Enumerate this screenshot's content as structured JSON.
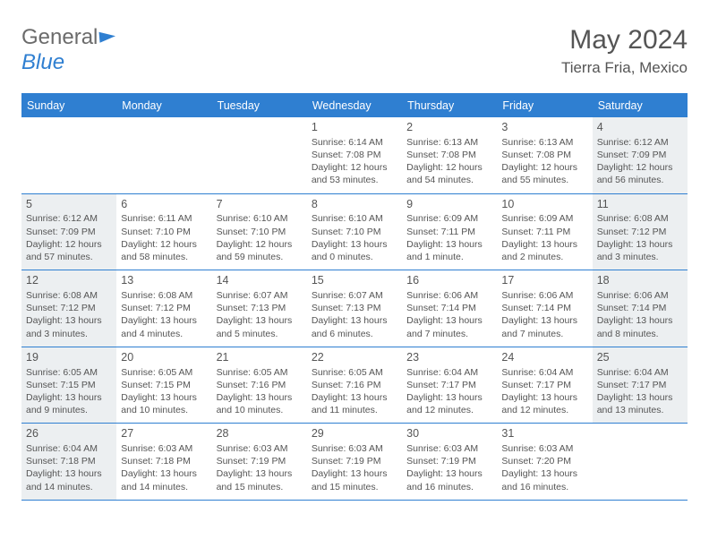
{
  "logo": {
    "text1": "General",
    "text2": "Blue"
  },
  "title": "May 2024",
  "location": "Tierra Fria, Mexico",
  "colors": {
    "brand": "#2f7fd1",
    "text": "#555555",
    "shaded_bg": "#eceff1",
    "background": "#ffffff"
  },
  "weekdays": [
    "Sunday",
    "Monday",
    "Tuesday",
    "Wednesday",
    "Thursday",
    "Friday",
    "Saturday"
  ],
  "weeks": [
    [
      null,
      null,
      null,
      {
        "n": "1",
        "sr": "Sunrise: 6:14 AM",
        "ss": "Sunset: 7:08 PM",
        "d1": "Daylight: 12 hours",
        "d2": "and 53 minutes."
      },
      {
        "n": "2",
        "sr": "Sunrise: 6:13 AM",
        "ss": "Sunset: 7:08 PM",
        "d1": "Daylight: 12 hours",
        "d2": "and 54 minutes."
      },
      {
        "n": "3",
        "sr": "Sunrise: 6:13 AM",
        "ss": "Sunset: 7:08 PM",
        "d1": "Daylight: 12 hours",
        "d2": "and 55 minutes."
      },
      {
        "n": "4",
        "sr": "Sunrise: 6:12 AM",
        "ss": "Sunset: 7:09 PM",
        "d1": "Daylight: 12 hours",
        "d2": "and 56 minutes.",
        "shaded": true
      }
    ],
    [
      {
        "n": "5",
        "sr": "Sunrise: 6:12 AM",
        "ss": "Sunset: 7:09 PM",
        "d1": "Daylight: 12 hours",
        "d2": "and 57 minutes.",
        "shaded": true
      },
      {
        "n": "6",
        "sr": "Sunrise: 6:11 AM",
        "ss": "Sunset: 7:10 PM",
        "d1": "Daylight: 12 hours",
        "d2": "and 58 minutes."
      },
      {
        "n": "7",
        "sr": "Sunrise: 6:10 AM",
        "ss": "Sunset: 7:10 PM",
        "d1": "Daylight: 12 hours",
        "d2": "and 59 minutes."
      },
      {
        "n": "8",
        "sr": "Sunrise: 6:10 AM",
        "ss": "Sunset: 7:10 PM",
        "d1": "Daylight: 13 hours",
        "d2": "and 0 minutes."
      },
      {
        "n": "9",
        "sr": "Sunrise: 6:09 AM",
        "ss": "Sunset: 7:11 PM",
        "d1": "Daylight: 13 hours",
        "d2": "and 1 minute."
      },
      {
        "n": "10",
        "sr": "Sunrise: 6:09 AM",
        "ss": "Sunset: 7:11 PM",
        "d1": "Daylight: 13 hours",
        "d2": "and 2 minutes."
      },
      {
        "n": "11",
        "sr": "Sunrise: 6:08 AM",
        "ss": "Sunset: 7:12 PM",
        "d1": "Daylight: 13 hours",
        "d2": "and 3 minutes.",
        "shaded": true
      }
    ],
    [
      {
        "n": "12",
        "sr": "Sunrise: 6:08 AM",
        "ss": "Sunset: 7:12 PM",
        "d1": "Daylight: 13 hours",
        "d2": "and 3 minutes.",
        "shaded": true
      },
      {
        "n": "13",
        "sr": "Sunrise: 6:08 AM",
        "ss": "Sunset: 7:12 PM",
        "d1": "Daylight: 13 hours",
        "d2": "and 4 minutes."
      },
      {
        "n": "14",
        "sr": "Sunrise: 6:07 AM",
        "ss": "Sunset: 7:13 PM",
        "d1": "Daylight: 13 hours",
        "d2": "and 5 minutes."
      },
      {
        "n": "15",
        "sr": "Sunrise: 6:07 AM",
        "ss": "Sunset: 7:13 PM",
        "d1": "Daylight: 13 hours",
        "d2": "and 6 minutes."
      },
      {
        "n": "16",
        "sr": "Sunrise: 6:06 AM",
        "ss": "Sunset: 7:14 PM",
        "d1": "Daylight: 13 hours",
        "d2": "and 7 minutes."
      },
      {
        "n": "17",
        "sr": "Sunrise: 6:06 AM",
        "ss": "Sunset: 7:14 PM",
        "d1": "Daylight: 13 hours",
        "d2": "and 7 minutes."
      },
      {
        "n": "18",
        "sr": "Sunrise: 6:06 AM",
        "ss": "Sunset: 7:14 PM",
        "d1": "Daylight: 13 hours",
        "d2": "and 8 minutes.",
        "shaded": true
      }
    ],
    [
      {
        "n": "19",
        "sr": "Sunrise: 6:05 AM",
        "ss": "Sunset: 7:15 PM",
        "d1": "Daylight: 13 hours",
        "d2": "and 9 minutes.",
        "shaded": true
      },
      {
        "n": "20",
        "sr": "Sunrise: 6:05 AM",
        "ss": "Sunset: 7:15 PM",
        "d1": "Daylight: 13 hours",
        "d2": "and 10 minutes."
      },
      {
        "n": "21",
        "sr": "Sunrise: 6:05 AM",
        "ss": "Sunset: 7:16 PM",
        "d1": "Daylight: 13 hours",
        "d2": "and 10 minutes."
      },
      {
        "n": "22",
        "sr": "Sunrise: 6:05 AM",
        "ss": "Sunset: 7:16 PM",
        "d1": "Daylight: 13 hours",
        "d2": "and 11 minutes."
      },
      {
        "n": "23",
        "sr": "Sunrise: 6:04 AM",
        "ss": "Sunset: 7:17 PM",
        "d1": "Daylight: 13 hours",
        "d2": "and 12 minutes."
      },
      {
        "n": "24",
        "sr": "Sunrise: 6:04 AM",
        "ss": "Sunset: 7:17 PM",
        "d1": "Daylight: 13 hours",
        "d2": "and 12 minutes."
      },
      {
        "n": "25",
        "sr": "Sunrise: 6:04 AM",
        "ss": "Sunset: 7:17 PM",
        "d1": "Daylight: 13 hours",
        "d2": "and 13 minutes.",
        "shaded": true
      }
    ],
    [
      {
        "n": "26",
        "sr": "Sunrise: 6:04 AM",
        "ss": "Sunset: 7:18 PM",
        "d1": "Daylight: 13 hours",
        "d2": "and 14 minutes.",
        "shaded": true
      },
      {
        "n": "27",
        "sr": "Sunrise: 6:03 AM",
        "ss": "Sunset: 7:18 PM",
        "d1": "Daylight: 13 hours",
        "d2": "and 14 minutes."
      },
      {
        "n": "28",
        "sr": "Sunrise: 6:03 AM",
        "ss": "Sunset: 7:19 PM",
        "d1": "Daylight: 13 hours",
        "d2": "and 15 minutes."
      },
      {
        "n": "29",
        "sr": "Sunrise: 6:03 AM",
        "ss": "Sunset: 7:19 PM",
        "d1": "Daylight: 13 hours",
        "d2": "and 15 minutes."
      },
      {
        "n": "30",
        "sr": "Sunrise: 6:03 AM",
        "ss": "Sunset: 7:19 PM",
        "d1": "Daylight: 13 hours",
        "d2": "and 16 minutes."
      },
      {
        "n": "31",
        "sr": "Sunrise: 6:03 AM",
        "ss": "Sunset: 7:20 PM",
        "d1": "Daylight: 13 hours",
        "d2": "and 16 minutes."
      },
      null
    ]
  ]
}
